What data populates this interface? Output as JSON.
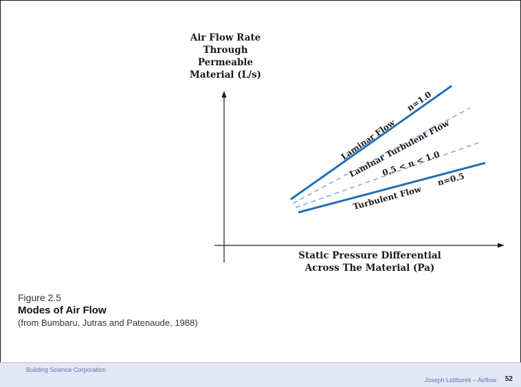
{
  "diagram": {
    "y_axis_label": [
      "Air Flow Rate",
      "Through",
      "Permeable",
      "Material (L/s)"
    ],
    "x_axis_label": [
      "Static Pressure Differential",
      "Across The Material (Pa)"
    ],
    "labels": {
      "laminar": "Laminar Flow",
      "laminar_n": "n=1.0",
      "laminar_turbulent": "Laminar Turbulent Flow",
      "laminar_turbulent_n": "0.5 < n < 1.0",
      "turbulent": "Turbulent Flow",
      "turbulent_n": "n=0.5"
    },
    "colors": {
      "solid_line": "#1f6fb5",
      "dashed_line": "#7ea8dc",
      "axis": "#1a1a1a"
    }
  },
  "caption": {
    "figure_number": "Figure 2.5",
    "title": "Modes of Air Flow",
    "source": "(from Bumbaru, Jutras and Patenaude, 1988)"
  },
  "footer": {
    "organization": "Building Science Corporation",
    "author_topic": "Joseph Lstiburek – Airflow",
    "page_number": "52"
  }
}
